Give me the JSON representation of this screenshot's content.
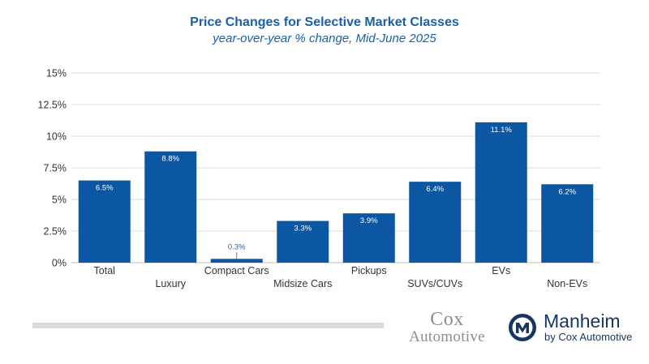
{
  "chart_data": {
    "type": "bar",
    "title": "Price Changes for Selective Market Classes",
    "subtitle": "year-over-year % change, Mid-June 2025",
    "xlabel": "",
    "ylabel": "",
    "categories": [
      "Total",
      "Luxury",
      "Compact Cars",
      "Midsize Cars",
      "Pickups",
      "SUVs/CUVs",
      "EVs",
      "Non-EVs"
    ],
    "values": [
      6.5,
      8.8,
      0.3,
      3.3,
      3.9,
      6.4,
      11.1,
      6.2
    ],
    "data_labels": [
      "6.5%",
      "8.8%",
      "0.3%",
      "3.3%",
      "3.9%",
      "6.4%",
      "11.1%",
      "6.2%"
    ],
    "ylim": [
      0,
      15
    ],
    "yticks": [
      0,
      2.5,
      5,
      7.5,
      10,
      12.5,
      15
    ],
    "ytick_labels": [
      "0%",
      "2.5%",
      "5%",
      "7.5%",
      "10%",
      "12.5%",
      "15%"
    ],
    "grid": true,
    "colors": {
      "bar": "#0b57a4",
      "title": "#1a5fa8",
      "grid": "#d9d9d9",
      "label_inside": "#ffffff",
      "label_outside": "#1a5fa8"
    }
  },
  "logos": {
    "cox": {
      "line1": "Cox",
      "line2": "Automotive",
      "color": "#8a8f94"
    },
    "manheim": {
      "name": "Manheim",
      "tagline": "by Cox Automotive",
      "color": "#17355e",
      "icon": "manheim-m-icon"
    }
  }
}
